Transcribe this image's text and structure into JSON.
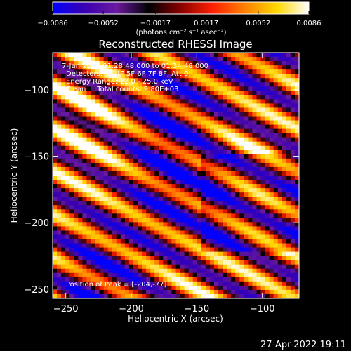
{
  "chart_data": {
    "type": "heatmap",
    "title": "Reconstructed RHESSI Image",
    "xlabel": "Heliocentric X (arcsec)",
    "ylabel": "Heliocentric Y (arcsec)",
    "xlim": [
      -260,
      -72
    ],
    "ylim": [
      -257,
      -72
    ],
    "xticks": [
      -250,
      -200,
      -150,
      -100
    ],
    "yticks": [
      -250,
      -200,
      -150,
      -100
    ],
    "xtick_labels": [
      "−250",
      "−200",
      "−150",
      "−100"
    ],
    "ytick_labels": [
      "−250",
      "−200",
      "−150",
      "−100"
    ],
    "colorbar": {
      "min": -0.0086,
      "max": 0.0086,
      "ticks": [
        -0.0086,
        -0.0052,
        -0.0017,
        0.0017,
        0.0052,
        0.0086
      ],
      "tick_labels": [
        "−0.0086",
        "−0.0052",
        "−0.0017",
        "0.0017",
        "0.0052",
        "0.0086"
      ],
      "unit_label": "(photons cm⁻² s⁻¹ asec⁻²)",
      "colormap": [
        "#0000ff",
        "#3a00b0",
        "#6a1aa0",
        "#000000",
        "#8a0000",
        "#ff2000",
        "#ff8000",
        "#ffd800",
        "#ffffff"
      ]
    },
    "annotations": [
      "7-Jan-2004 01:28:48.000 to 01:34:48.000",
      "Detectors: 3F 4F 5F 6F 7F 8F, Att 0",
      "Energy Range: 12.0 - 25.0 keV",
      "Clean     Total counts: 9.80E+03"
    ],
    "peak_label": "Position of Peak = [-204,-77]",
    "peak": [
      -204,
      -77
    ],
    "grid": false
  },
  "footer": {
    "timestamp": "27-Apr-2022 19:11"
  }
}
